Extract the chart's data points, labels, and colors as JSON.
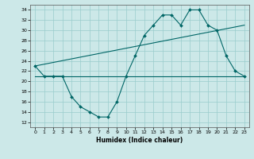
{
  "title": "",
  "xlabel": "Humidex (Indice chaleur)",
  "bg_color": "#cce8e8",
  "line_color": "#006666",
  "grid_color": "#99cccc",
  "xlim": [
    -0.5,
    23.5
  ],
  "ylim": [
    11,
    35
  ],
  "yticks": [
    12,
    14,
    16,
    18,
    20,
    22,
    24,
    26,
    28,
    30,
    32,
    34
  ],
  "xticks": [
    0,
    1,
    2,
    3,
    4,
    5,
    6,
    7,
    8,
    9,
    10,
    11,
    12,
    13,
    14,
    15,
    16,
    17,
    18,
    19,
    20,
    21,
    22,
    23
  ],
  "curve1_x": [
    0,
    1,
    2,
    3,
    4,
    5,
    6,
    7,
    8,
    9,
    10,
    11,
    12,
    13,
    14,
    15,
    16,
    17,
    18,
    19,
    20,
    21,
    22,
    23
  ],
  "curve1_y": [
    23,
    21,
    21,
    21,
    17,
    15,
    14,
    13,
    13,
    16,
    21,
    25,
    29,
    31,
    33,
    33,
    31,
    34,
    34,
    31,
    30,
    25,
    22,
    21
  ],
  "curve2_x": [
    0,
    23
  ],
  "curve2_y": [
    23,
    31
  ],
  "curve3_x": [
    0,
    23
  ],
  "curve3_y": [
    21,
    21
  ]
}
